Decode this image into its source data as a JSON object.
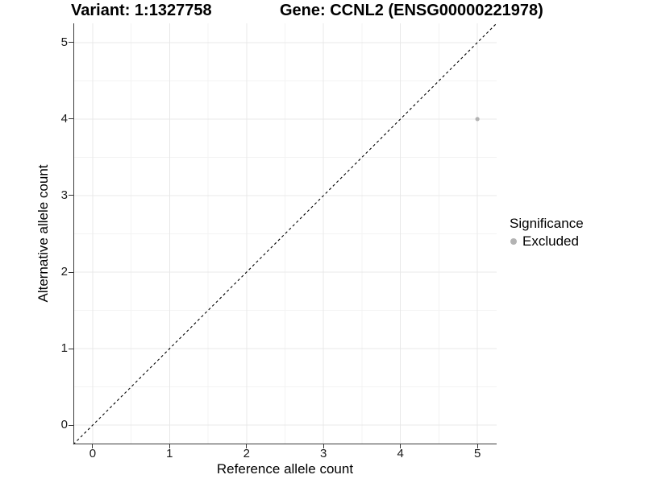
{
  "title": {
    "variant": "Variant: 1:1327758",
    "gene": "Gene: CCNL2 (ENSG00000221978)"
  },
  "axes": {
    "x": {
      "label": "Reference allele count"
    },
    "y": {
      "label": "Alternative allele count"
    }
  },
  "legend": {
    "title": "Significance",
    "items": [
      {
        "label": "Excluded",
        "color": "#b3b3b3"
      }
    ]
  },
  "chart_data": {
    "type": "scatter",
    "title": "Variant: 1:1327758 | Gene: CCNL2 (ENSG00000221978)",
    "xlabel": "Reference allele count",
    "ylabel": "Alternative allele count",
    "xlim": [
      -0.25,
      5.25
    ],
    "ylim": [
      -0.25,
      5.25
    ],
    "x_ticks": [
      0,
      1,
      2,
      3,
      4,
      5
    ],
    "y_ticks": [
      0,
      1,
      2,
      3,
      4,
      5
    ],
    "grid": {
      "on": true,
      "major": [
        0,
        1,
        2,
        3,
        4,
        5
      ],
      "minor": [
        0.5,
        1.5,
        2.5,
        3.5,
        4.5
      ],
      "major_color": "#e8e8e8",
      "minor_color": "#f3f3f3"
    },
    "series": [
      {
        "name": "Excluded",
        "color": "#b3b3b3",
        "points": [
          [
            5,
            4
          ]
        ]
      }
    ],
    "reference_line": {
      "kind": "identity y=x",
      "style": "dashed",
      "color": "#000000",
      "from": -0.25,
      "to": 5.25
    },
    "axis_color": "#3c3c3c",
    "legend_position": "right"
  }
}
